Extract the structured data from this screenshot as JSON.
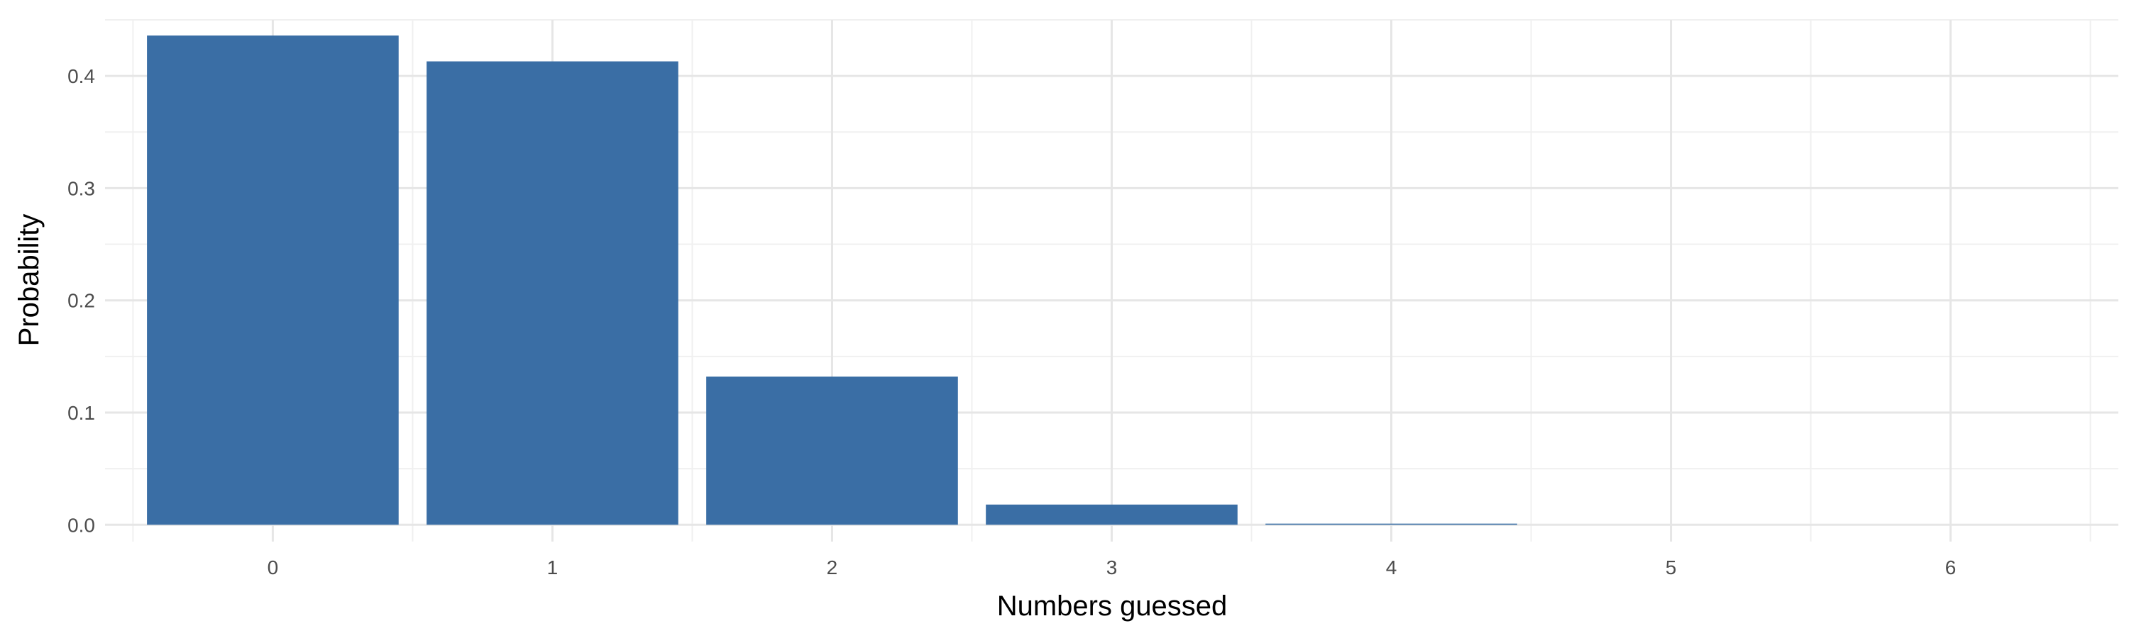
{
  "chart_data": {
    "type": "bar",
    "title": "",
    "xlabel": "Numbers guessed",
    "ylabel": "Probability",
    "categories": [
      "0",
      "1",
      "2",
      "3",
      "4",
      "5",
      "6"
    ],
    "values": [
      0.436,
      0.413,
      0.132,
      0.018,
      0.001,
      0.0,
      0.0
    ],
    "ylim": [
      -0.015,
      0.45
    ],
    "y_ticks": [
      0.0,
      0.1,
      0.2,
      0.3,
      0.4
    ],
    "y_tick_labels": [
      "0.0",
      "0.1",
      "0.2",
      "0.3",
      "0.4"
    ],
    "grid": true,
    "legend": "none",
    "colors": {
      "bar": "#3A6EA5",
      "grid_major": "#E6E6E6",
      "grid_minor": "#F0F0F0"
    }
  }
}
